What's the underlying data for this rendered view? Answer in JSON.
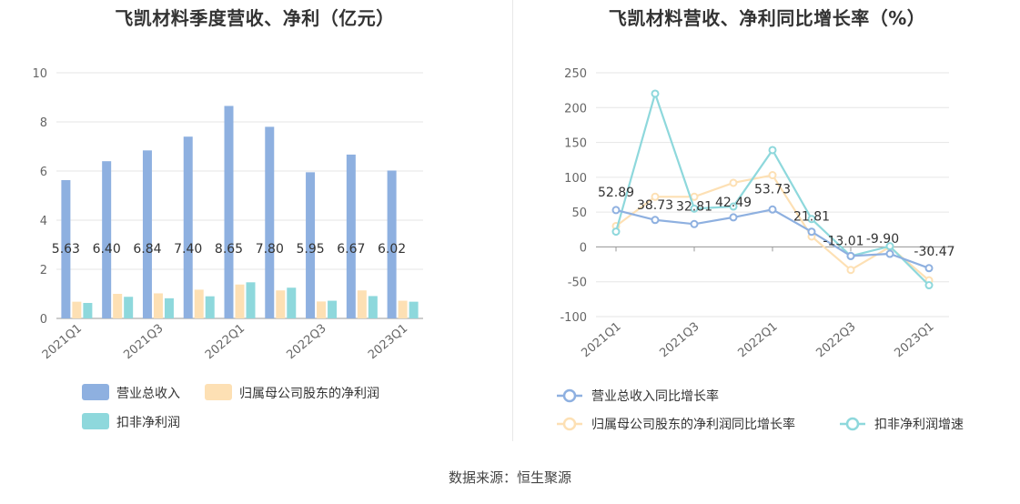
{
  "source_text": "数据来源：恒生聚源",
  "chart_data": [
    {
      "type": "bar",
      "title": "飞凯材料季度营收、净利（亿元）",
      "categories": [
        "2021Q1",
        "2021Q2",
        "2021Q3",
        "2021Q4",
        "2022Q1",
        "2022Q2",
        "2022Q3",
        "2022Q4",
        "2023Q1"
      ],
      "x_tick_labels": [
        "2021Q1",
        "2021Q3",
        "2022Q1",
        "2022Q3",
        "2023Q1"
      ],
      "ylim": [
        0,
        10
      ],
      "y_ticks": [
        0,
        2,
        4,
        6,
        8,
        10
      ],
      "grid": true,
      "legend_position": "bottom",
      "series": [
        {
          "name": "营业总收入",
          "color": "#8eb0e0",
          "values": [
            5.63,
            6.4,
            6.84,
            7.4,
            8.65,
            7.8,
            5.95,
            6.67,
            6.02
          ],
          "labels": [
            "5.63",
            "6.40",
            "6.84",
            "7.40",
            "8.65",
            "7.80",
            "5.95",
            "6.67",
            "6.02"
          ]
        },
        {
          "name": "归属母公司股东的净利润",
          "color": "#fde0b4",
          "values": [
            0.68,
            1.0,
            1.02,
            1.17,
            1.38,
            1.14,
            0.69,
            1.14,
            0.72
          ]
        },
        {
          "name": "扣非净利润",
          "color": "#8ed8dc",
          "values": [
            0.63,
            0.88,
            0.82,
            0.9,
            1.47,
            1.25,
            0.72,
            0.91,
            0.68
          ]
        }
      ]
    },
    {
      "type": "line",
      "title": "飞凯材料营收、净利同比增长率（%）",
      "categories": [
        "2021Q1",
        "2021Q2",
        "2021Q3",
        "2021Q4",
        "2022Q1",
        "2022Q2",
        "2022Q3",
        "2022Q4",
        "2023Q1"
      ],
      "x_tick_labels": [
        "2021Q1",
        "2021Q3",
        "2022Q1",
        "2022Q3",
        "2023Q1"
      ],
      "ylim": [
        -100,
        250
      ],
      "y_ticks": [
        -100,
        -50,
        0,
        50,
        100,
        150,
        200,
        250
      ],
      "grid": true,
      "legend_position": "bottom",
      "series": [
        {
          "name": "营业总收入同比增长率",
          "color": "#8eb0e0",
          "values": [
            52.89,
            38.73,
            32.81,
            42.49,
            53.73,
            21.81,
            -13.01,
            -9.9,
            -30.47
          ],
          "labels": [
            "52.89",
            "38.73",
            "32.81",
            "42.49",
            "53.73",
            "21.81",
            "-13.01",
            "-9.90",
            "-30.47"
          ]
        },
        {
          "name": "归属母公司股东的净利润同比增长率",
          "color": "#fde0b4",
          "values": [
            30,
            72,
            72,
            92,
            103,
            15,
            -33,
            0,
            -48
          ]
        },
        {
          "name": "扣非净利润增速",
          "color": "#8ed8dc",
          "values": [
            22,
            220,
            55,
            58,
            139,
            40,
            -13,
            1,
            -55
          ]
        }
      ]
    }
  ]
}
